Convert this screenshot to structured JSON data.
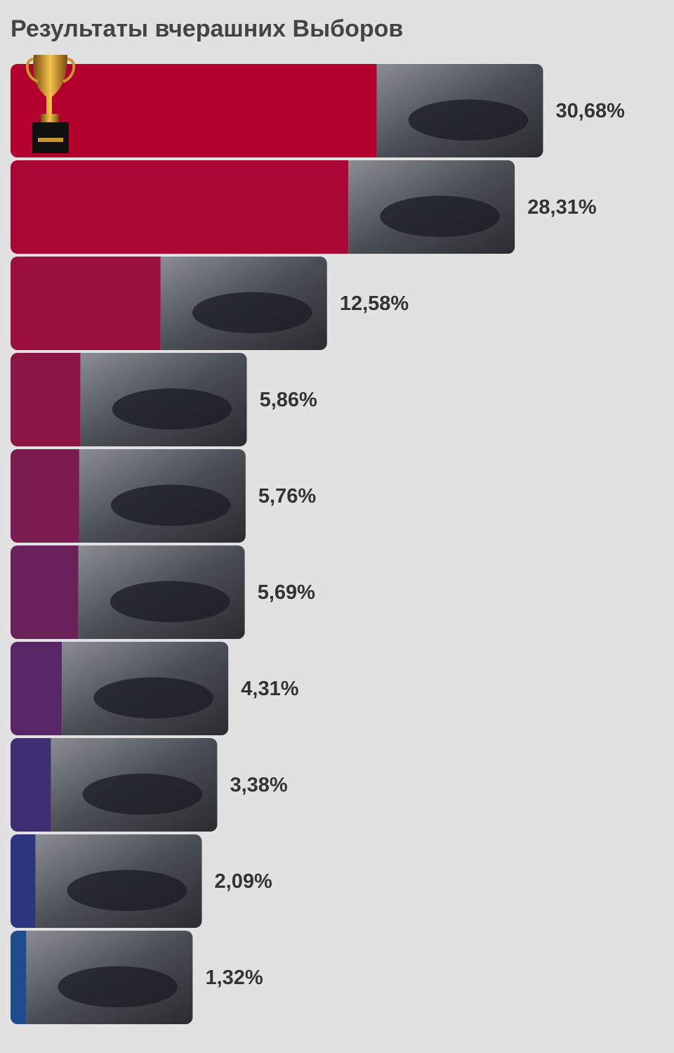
{
  "chart_data": {
    "type": "bar",
    "orientation": "horizontal",
    "title": "Результаты вчерашних Выборов",
    "values": [
      30.68,
      28.31,
      12.58,
      5.86,
      5.76,
      5.69,
      4.31,
      3.38,
      2.09,
      1.32
    ],
    "value_labels": [
      "30,68%",
      "28,31%",
      "12,58%",
      "5,86%",
      "5,76%",
      "5,69%",
      "4,31%",
      "3,38%",
      "2,09%",
      "1,32%"
    ],
    "colors": [
      "#b4002d",
      "#a80733",
      "#9a0f3e",
      "#8b1646",
      "#7b1c50",
      "#6a2059",
      "#582566",
      "#3f2e72",
      "#2d357f",
      "#1f4b8f"
    ]
  }
}
